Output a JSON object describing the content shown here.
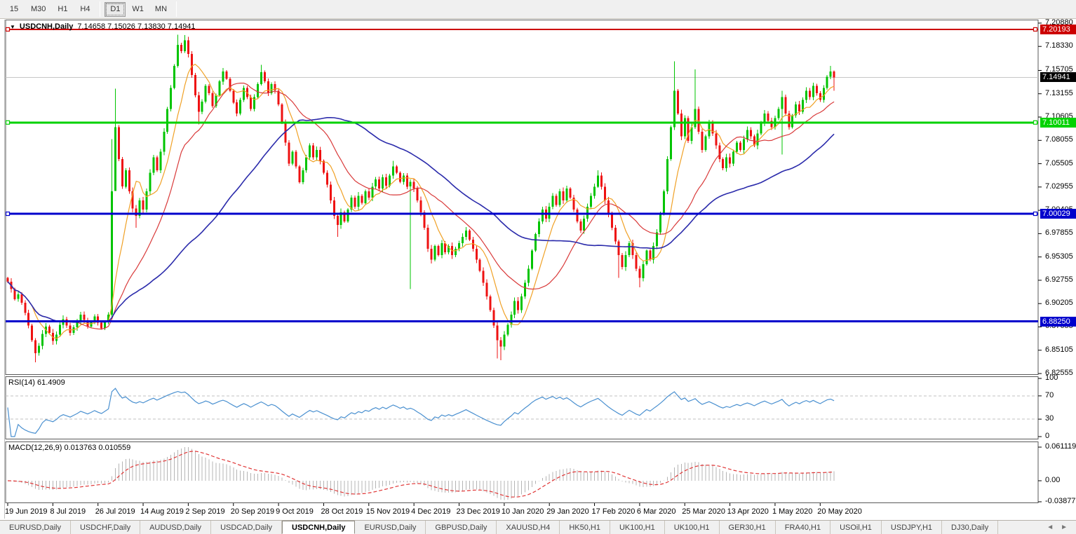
{
  "toolbar": {
    "timeframes": [
      "15",
      "M30",
      "H1",
      "H4",
      "D1",
      "W1",
      "MN"
    ],
    "active_timeframe": "D1"
  },
  "chart_header": {
    "symbol": "USDCNH,Daily",
    "ohlc": "7.14658 7.15026 7.13830 7.14941"
  },
  "colors": {
    "bull": "#00c400",
    "bear": "#ee1111",
    "ma_fast": "#f0a126",
    "ma_mid": "#d93a3a",
    "ma_slow": "#2b2bab",
    "bid_line": "#c6c6c6",
    "bid_badge": "#000000",
    "rsi_line": "#4a90d0",
    "rsi_level": "#c0c0c0",
    "macd_hist": "#b4b4b4",
    "macd_signal": "#e03535",
    "pane_border": "#5a5a5a"
  },
  "chart_data": {
    "type": "candlestick",
    "title": "USDCNH,Daily",
    "last_price": "7.14941",
    "ylim": [
      6.8248,
      7.2126
    ],
    "price_ticks": [
      "7.20880",
      "7.18330",
      "7.15705",
      "7.13155",
      "7.10605",
      "7.08055",
      "7.05505",
      "7.02955",
      "7.00405",
      "6.97855",
      "6.95305",
      "6.92755",
      "6.90205",
      "6.87655",
      "6.85105",
      "6.82555"
    ],
    "x_labels": [
      "19 Jun 2019",
      "8 Jul 2019",
      "26 Jul 2019",
      "14 Aug 2019",
      "2 Sep 2019",
      "20 Sep 2019",
      "9 Oct 2019",
      "28 Oct 2019",
      "15 Nov 2019",
      "4 Dec 2019",
      "23 Dec 2019",
      "10 Jan 2020",
      "29 Jan 2020",
      "17 Feb 2020",
      "6 Mar 2020",
      "25 Mar 2020",
      "13 Apr 2020",
      "1 May 2020",
      "20 May 2020"
    ],
    "bars_per_label": 13,
    "first_open": 6.93,
    "closes": [
      6.926,
      6.918,
      6.907,
      6.912,
      6.903,
      6.892,
      6.878,
      6.862,
      6.848,
      6.856,
      6.869,
      6.877,
      6.87,
      6.861,
      6.868,
      6.879,
      6.885,
      6.878,
      6.87,
      6.876,
      6.882,
      6.89,
      6.884,
      6.877,
      6.882,
      6.888,
      6.881,
      6.875,
      6.882,
      6.89,
      7.025,
      7.095,
      7.06,
      7.03,
      7.048,
      7.025,
      7.006,
      6.998,
      7.015,
      7.005,
      7.025,
      7.045,
      7.062,
      7.048,
      7.068,
      7.09,
      7.115,
      7.138,
      7.162,
      7.185,
      7.178,
      7.19,
      7.175,
      7.152,
      7.13,
      7.112,
      7.123,
      7.14,
      7.132,
      7.118,
      7.13,
      7.145,
      7.156,
      7.148,
      7.135,
      7.122,
      7.11,
      7.125,
      7.138,
      7.128,
      7.115,
      7.128,
      7.142,
      7.155,
      7.145,
      7.132,
      7.142,
      7.135,
      7.12,
      7.1,
      7.078,
      7.055,
      7.068,
      7.052,
      7.035,
      7.048,
      7.062,
      7.075,
      7.062,
      7.07,
      7.058,
      7.045,
      7.032,
      7.015,
      6.998,
      6.988,
      7.002,
      6.992,
      7.005,
      7.018,
      7.008,
      7.02,
      7.012,
      7.025,
      7.018,
      7.03,
      7.038,
      7.028,
      7.04,
      7.031,
      7.042,
      7.052,
      7.045,
      7.035,
      7.042,
      7.03,
      7.035,
      7.028,
      7.015,
      7.002,
      6.985,
      6.962,
      6.95,
      6.965,
      6.955,
      6.968,
      6.958,
      6.965,
      6.955,
      6.962,
      6.968,
      6.975,
      6.982,
      6.972,
      6.962,
      6.95,
      6.938,
      6.925,
      6.91,
      6.895,
      6.878,
      6.862,
      6.855,
      6.868,
      6.879,
      6.89,
      6.905,
      6.895,
      6.91,
      6.925,
      6.94,
      6.96,
      6.978,
      6.992,
      7.005,
      6.995,
      7.008,
      7.02,
      7.01,
      7.025,
      7.015,
      7.028,
      7.018,
      7.005,
      6.992,
      6.982,
      6.995,
      7.008,
      7.02,
      7.03,
      7.042,
      7.03,
      7.015,
      7.0,
      6.985,
      6.97,
      6.955,
      6.942,
      6.955,
      6.968,
      6.955,
      6.94,
      6.93,
      6.945,
      6.96,
      6.95,
      6.965,
      6.98,
      7.0,
      7.025,
      7.06,
      7.095,
      7.135,
      7.11,
      7.085,
      7.105,
      7.08,
      7.095,
      7.115,
      7.09,
      7.07,
      7.085,
      7.1,
      7.088,
      7.075,
      7.06,
      7.05,
      7.062,
      7.055,
      7.068,
      7.078,
      7.07,
      7.082,
      7.092,
      7.085,
      7.075,
      7.088,
      7.1,
      7.11,
      7.102,
      7.095,
      7.105,
      7.115,
      7.128,
      7.11,
      7.095,
      7.108,
      7.12,
      7.112,
      7.125,
      7.135,
      7.128,
      7.14,
      7.132,
      7.125,
      7.138,
      7.15,
      7.156,
      7.14941
    ],
    "hl_overrides": {
      "8": [
        null,
        6.838
      ],
      "30": [
        7.082,
        6.886
      ],
      "31": [
        7.137,
        7.03
      ],
      "37": [
        null,
        6.985
      ],
      "49": [
        7.196,
        null
      ],
      "51": [
        7.1958,
        null
      ],
      "55": [
        null,
        7.098
      ],
      "73": [
        7.163,
        null
      ],
      "95": [
        null,
        6.975
      ],
      "111": [
        7.058,
        null
      ],
      "116": [
        null,
        6.918
      ],
      "141": [
        null,
        6.842
      ],
      "142": [
        null,
        6.84
      ],
      "170": [
        7.048,
        null
      ],
      "176": [
        null,
        6.93
      ],
      "182": [
        null,
        6.92
      ],
      "192": [
        7.167,
        null
      ],
      "198": [
        7.158,
        null
      ],
      "223": [
        7.135,
        7.065
      ],
      "237": [
        7.162,
        null
      ],
      "238": [
        7.157,
        7.135
      ]
    },
    "levels": [
      {
        "price": 7.20193,
        "label": "7.20193",
        "color": "#cc0000",
        "width": 2,
        "name": "resistance-line",
        "handles": true
      },
      {
        "price": 7.10011,
        "label": "7.10011",
        "color": "#00d200",
        "width": 3,
        "name": "support-line-green",
        "handles": true
      },
      {
        "price": 7.00029,
        "label": "7.00029",
        "color": "#0000cc",
        "width": 3,
        "name": "support-line-blue-upper",
        "handles": true
      },
      {
        "price": 6.8825,
        "label": "6.88250",
        "color": "#0000cc",
        "width": 3,
        "name": "support-line-blue-lower",
        "handles": false
      }
    ],
    "bid": {
      "price": 7.14941,
      "label": "7.14941"
    },
    "moving_averages": [
      {
        "period": 8,
        "color_key": "ma_fast"
      },
      {
        "period": 21,
        "color_key": "ma_mid"
      },
      {
        "period": 55,
        "color_key": "ma_slow"
      }
    ],
    "rsi": {
      "label": "RSI(14) 61.4909",
      "period": 14,
      "levels": [
        70,
        30
      ],
      "ticks": [
        {
          "v": 100,
          "t": "100"
        },
        {
          "v": 70,
          "t": "70"
        },
        {
          "v": 30,
          "t": "30"
        },
        {
          "v": 0,
          "t": "0"
        }
      ]
    },
    "macd": {
      "label": "MACD(12,26,9) 0.013763 0.010559",
      "fast": 12,
      "slow": 26,
      "signal": 9,
      "ticks": [
        {
          "v": 0.061119,
          "t": "0.061119"
        },
        {
          "v": 0.0,
          "t": "0.00"
        },
        {
          "v": -0.038777,
          "t": "-0.038777"
        }
      ]
    }
  },
  "tabbar": {
    "tabs": [
      "EURUSD,Daily",
      "USDCHF,Daily",
      "AUDUSD,Daily",
      "USDCAD,Daily",
      "USDCNH,Daily",
      "EURUSD,Daily",
      "GBPUSD,Daily",
      "XAUUSD,H4",
      "HK50,H1",
      "UK100,H1",
      "UK100,H1",
      "GER30,H1",
      "FRA40,H1",
      "USOil,H1",
      "USDJPY,H1",
      "DJ30,Daily"
    ],
    "active_index": 4,
    "scroll_left": "◄",
    "scroll_right": "►"
  }
}
